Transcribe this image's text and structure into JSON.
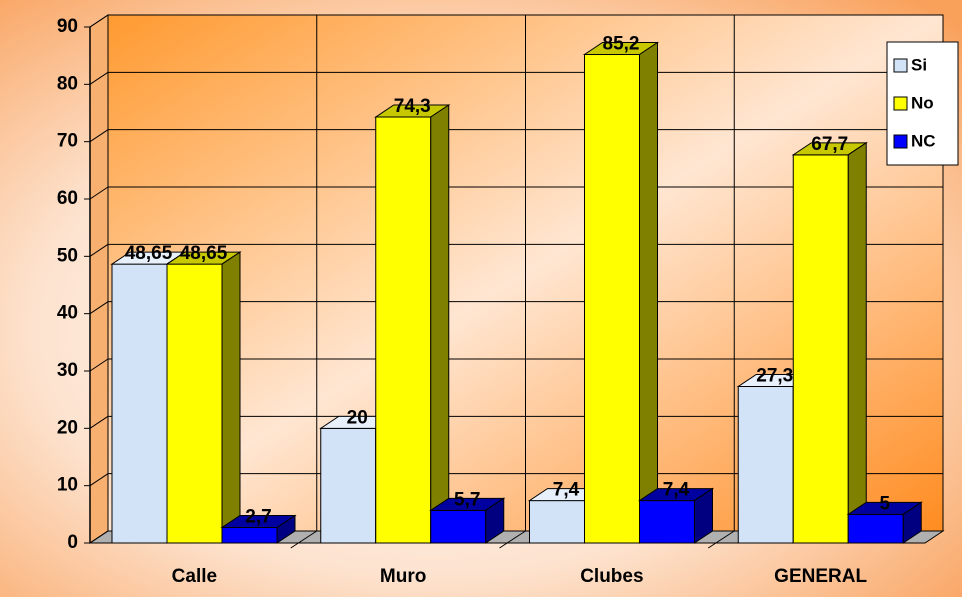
{
  "chart_data": {
    "type": "bar3d",
    "categories": [
      "Calle",
      "Muro",
      "Clubes",
      "GENERAL"
    ],
    "series": [
      {
        "name": "Si",
        "color": "#d3e3f7",
        "side": "#9fb0c8",
        "top": "#e8f0fb",
        "values": [
          48.65,
          20,
          7.4,
          27.3
        ],
        "value_labels": [
          "48,65",
          "20",
          "7,4",
          "27,3"
        ]
      },
      {
        "name": "No",
        "color": "#ffff00",
        "side": "#808000",
        "top": "#c8c800",
        "values": [
          48.65,
          74.3,
          85.2,
          67.7
        ],
        "value_labels": [
          "48,65",
          "74,3",
          "85,2",
          "67,7"
        ]
      },
      {
        "name": "NC",
        "color": "#0000ff",
        "side": "#000080",
        "top": "#0000a0",
        "values": [
          2.7,
          5.7,
          7.4,
          5
        ],
        "value_labels": [
          "2,7",
          "5,7",
          "7,4",
          "5"
        ]
      }
    ],
    "ylim": [
      0,
      90
    ],
    "yticks": [
      0,
      10,
      20,
      30,
      40,
      50,
      60,
      70,
      80,
      90
    ],
    "grid": true,
    "legend": "right"
  }
}
